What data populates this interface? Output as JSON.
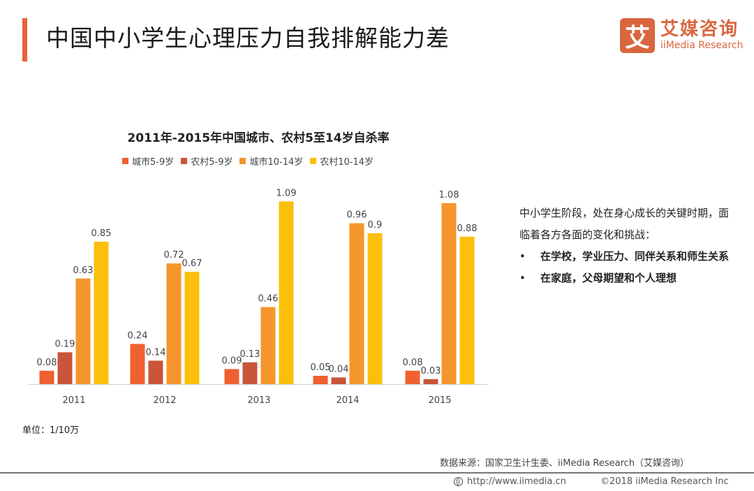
{
  "header": {
    "title": "中国中小学生心理压力自我排解能力差",
    "logo": {
      "mark": "艾",
      "cn": "艾媒咨询",
      "en": "iiMedia Research"
    }
  },
  "chart_data": {
    "type": "bar",
    "title": "2011年-2015年中国城市、农村5至14岁自杀率",
    "xlabel": "",
    "ylabel": "",
    "ylim": [
      0,
      1.2
    ],
    "grid": false,
    "legend_position": "top",
    "categories": [
      "2011",
      "2012",
      "2013",
      "2014",
      "2015"
    ],
    "series": [
      {
        "name": "城市5-9岁",
        "color": "#f06030",
        "values": [
          0.08,
          0.24,
          0.09,
          0.05,
          0.08
        ]
      },
      {
        "name": "农村5-9岁",
        "color": "#c9553a",
        "values": [
          0.19,
          0.14,
          0.13,
          0.04,
          0.03
        ]
      },
      {
        "name": "城市10-14岁",
        "color": "#f4962c",
        "values": [
          0.63,
          0.72,
          0.46,
          0.96,
          1.08
        ]
      },
      {
        "name": "农村10-14岁",
        "color": "#fbbf0c",
        "values": [
          0.85,
          0.67,
          1.09,
          0.9,
          0.88
        ]
      }
    ],
    "unit_note": "单位：1/10万"
  },
  "side": {
    "intro": "中小学生阶段，处在身心成长的关键时期，面临着各方各面的变化和挑战：",
    "bullets": [
      "在学校，学业压力、同伴关系和师生关系",
      "在家庭，父母期望和个人理想"
    ]
  },
  "footer": {
    "source": "数据来源：国家卫生计生委、iiMedia Research（艾媒咨询）",
    "url": "http://www.iimedia.cn",
    "copyright": "©2018 iiMedia Research Inc"
  }
}
